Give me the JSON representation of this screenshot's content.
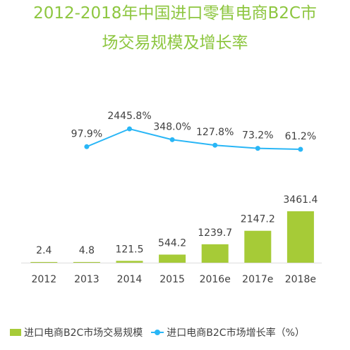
{
  "title": {
    "line1": "2012-2018年中国进口零售电商B2C市",
    "line2": "场交易规模及增长率"
  },
  "colors": {
    "title": "#8dc63f",
    "bar": "#a6cb37",
    "line": "#29b6f6",
    "text": "#404040",
    "baseline": "#dddddd"
  },
  "legend": {
    "bar_label": "进口电商B2C市场交易规模",
    "line_label": "进口电商B2C市场增长率（%）"
  },
  "chart_data": {
    "type": "bar",
    "categories": [
      "2012",
      "2013",
      "2014",
      "2015",
      "2016e",
      "2017e",
      "2018e"
    ],
    "series": [
      {
        "name": "进口电商B2C市场交易规模",
        "type": "bar",
        "values": [
          2.4,
          4.8,
          121.5,
          544.2,
          1239.7,
          2147.2,
          3461.4
        ],
        "labels": [
          "2.4",
          "4.8",
          "121.5",
          "544.2",
          "1239.7",
          "2147.2",
          "3461.4"
        ]
      },
      {
        "name": "进口电商B2C市场增长率（%）",
        "type": "line",
        "values": [
          null,
          97.9,
          2445.8,
          348.0,
          127.8,
          73.2,
          61.2
        ],
        "labels": [
          "",
          "97.9%",
          "2445.8%",
          "348.0%",
          "127.8%",
          "73.2%",
          "61.2%"
        ]
      }
    ],
    "grid": false,
    "legend_position": "bottom"
  }
}
